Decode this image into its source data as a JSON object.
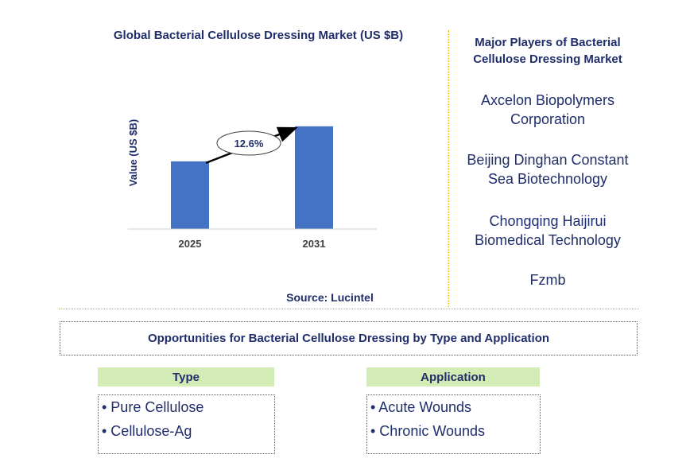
{
  "chart_data": {
    "type": "bar",
    "title": "Global Bacterial Cellulose Dressing Market (US $B)",
    "ylabel": "Value (US $B)",
    "categories": [
      "2025",
      "2031"
    ],
    "values": [
      0.56,
      0.85
    ],
    "ylim": [
      0,
      1
    ],
    "annotation": "12.6%",
    "bar_color": "#4472c4",
    "grid": false
  },
  "source": "Source: Lucintel",
  "players": {
    "title": "Major Players of Bacterial Cellulose Dressing Market",
    "items": [
      "Axcelon Biopolymers Corporation",
      "Beijing Dinghan Constant Sea Biotechnology",
      "Chongqing Haijirui Biomedical Technology",
      "Fzmb"
    ]
  },
  "opportunities": {
    "title": "Opportunities for Bacterial Cellulose Dressing by Type and Application",
    "type": {
      "header": "Type",
      "items": [
        "• Pure Cellulose",
        "• Cellulose-Ag"
      ]
    },
    "application": {
      "header": "Application",
      "items": [
        "• Acute Wounds",
        "• Chronic Wounds"
      ]
    }
  },
  "colors": {
    "text": "#1f2d6b",
    "header_bg": "#d3ecb5",
    "divider": "#e6b800"
  }
}
